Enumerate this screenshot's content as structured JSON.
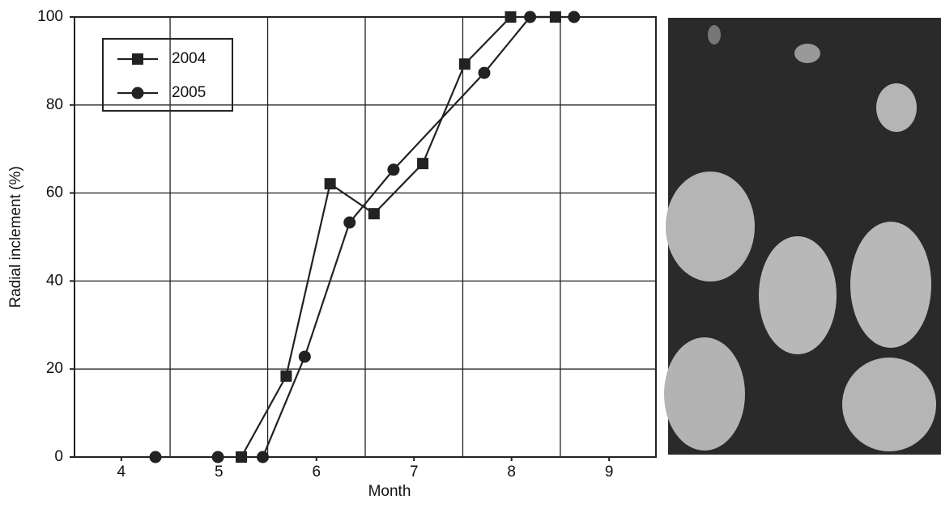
{
  "chart_data": {
    "type": "line",
    "x_label": "Month",
    "y_label": "Radial inclement (%)",
    "xlim": [
      3.52,
      9.48
    ],
    "xticks": [
      4,
      5,
      6,
      7,
      8,
      9
    ],
    "xgrid": [
      4.5,
      5.5,
      6.5,
      7.5,
      8.5
    ],
    "ylim": [
      0,
      100
    ],
    "yticks": [
      0,
      20,
      40,
      60,
      80,
      100
    ],
    "grid": true,
    "legend": "upper left",
    "series": [
      {
        "name": "2004",
        "color": "#222222",
        "marker": "square",
        "x": [
          5.23,
          5.69,
          6.14,
          6.59,
          7.09,
          7.52,
          7.99,
          8.45
        ],
        "values": [
          0,
          18.4,
          62.1,
          55.3,
          66.7,
          89.3,
          100,
          100
        ]
      },
      {
        "name": "2005",
        "color": "#222222",
        "marker": "circle",
        "x": [
          4.35,
          4.99,
          5.45,
          5.88,
          6.34,
          6.79,
          7.72,
          8.19,
          8.64
        ],
        "values": [
          0,
          0,
          0,
          22.8,
          53.3,
          65.3,
          87.3,
          100,
          100
        ]
      }
    ]
  }
}
